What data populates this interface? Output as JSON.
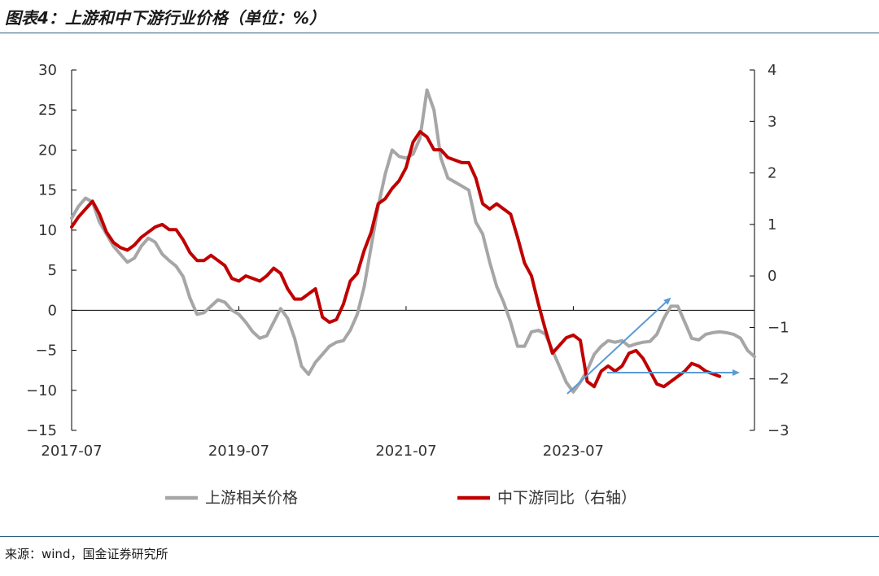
{
  "header": {
    "title": "图表4：上游和中下游行业价格（单位：%）"
  },
  "footer": {
    "source": "来源：wind，国金证券研究所"
  },
  "colors": {
    "upstream": "#a6a6a6",
    "downstream": "#c00000",
    "arrow": "#5b9bd5",
    "axis": "#000000",
    "rule": "#2b5f78"
  },
  "chart_data": {
    "type": "line",
    "x_start": "2017-07",
    "x_ticks": [
      "2017-07",
      "2019-07",
      "2021-07",
      "2023-07"
    ],
    "y_left": {
      "min": -15,
      "max": 30,
      "ticks": [
        "30",
        "25",
        "20",
        "15",
        "10",
        "5",
        "0",
        "−5",
        "−10",
        "−15"
      ]
    },
    "y_right": {
      "min": -3,
      "max": 4,
      "ticks": [
        "4",
        "3",
        "2",
        "1",
        "0",
        "−1",
        "−2",
        "−3"
      ]
    },
    "legend_position": "bottom",
    "series": [
      {
        "name": "上游相关价格",
        "axis": "left",
        "values": [
          11.5,
          13,
          14,
          13.5,
          11,
          9.5,
          8,
          7,
          6,
          6.5,
          8,
          9,
          8.5,
          7,
          6.2,
          5.5,
          4.2,
          1.5,
          -0.5,
          -0.3,
          0.5,
          1.3,
          1,
          0,
          -0.5,
          -1.5,
          -2.7,
          -3.5,
          -3.2,
          -1.5,
          0.2,
          -1,
          -3.5,
          -7,
          -8,
          -6.5,
          -5.5,
          -4.5,
          -4,
          -3.8,
          -2.5,
          -0.5,
          3,
          8,
          13,
          17,
          20,
          19.2,
          19,
          19.5,
          21.5,
          27.5,
          25,
          19,
          16.5,
          16,
          15.5,
          15,
          11,
          9.5,
          6,
          3,
          1,
          -1.5,
          -4.5,
          -4.5,
          -2.7,
          -2.5,
          -3,
          -5,
          -7,
          -9,
          -10.2,
          -9,
          -7.5,
          -5.5,
          -4.5,
          -3.8,
          -4,
          -3.8,
          -4.5,
          -4.2,
          -4,
          -3.9,
          -3,
          -1,
          0.5,
          0.5,
          -1.5,
          -3.5,
          -3.7,
          -3,
          -2.8,
          -2.7,
          -2.8,
          -3,
          -3.5,
          -5,
          -5.8
        ]
      },
      {
        "name": "中下游同比（右轴）",
        "axis": "right",
        "values": [
          0.95,
          1.15,
          1.3,
          1.45,
          1.2,
          0.85,
          0.65,
          0.55,
          0.5,
          0.6,
          0.75,
          0.85,
          0.95,
          1,
          0.9,
          0.9,
          0.7,
          0.45,
          0.3,
          0.3,
          0.4,
          0.3,
          0.2,
          -0.05,
          -0.1,
          0,
          -0.05,
          -0.1,
          0,
          0.15,
          0.05,
          -0.25,
          -0.45,
          -0.45,
          -0.35,
          -0.25,
          -0.8,
          -0.9,
          -0.85,
          -0.55,
          -0.1,
          0.05,
          0.5,
          0.85,
          1.4,
          1.5,
          1.7,
          1.85,
          2.1,
          2.6,
          2.8,
          2.7,
          2.45,
          2.45,
          2.3,
          2.25,
          2.2,
          2.2,
          1.9,
          1.4,
          1.3,
          1.4,
          1.3,
          1.2,
          0.75,
          0.25,
          0,
          -0.55,
          -1.05,
          -1.5,
          -1.35,
          -1.2,
          -1.15,
          -1.25,
          -2.05,
          -2.15,
          -1.85,
          -1.75,
          -1.85,
          -1.75,
          -1.5,
          -1.45,
          -1.6,
          -1.85,
          -2.1,
          -2.15,
          -2.05,
          -1.95,
          -1.85,
          -1.7,
          -1.75,
          -1.85,
          -1.9,
          -1.95
        ]
      }
    ]
  }
}
